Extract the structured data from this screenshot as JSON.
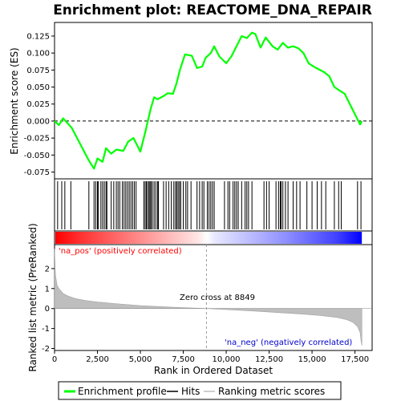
{
  "chart_data": {
    "type": "line",
    "title": "Enrichment plot: REACTOME_DNA_REPAIR",
    "xlabel": "Rank in Ordered Dataset",
    "ylabel_top": "Enrichment score (ES)",
    "ylabel_bottom": "Ranked list metric (PreRanked)",
    "xlim": [
      0,
      18500
    ],
    "x_ticks": [
      0,
      2500,
      5000,
      7500,
      10000,
      12500,
      15000,
      17500
    ],
    "x_tick_labels": [
      "0",
      "2,500",
      "5,000",
      "7,500",
      "10,000",
      "12,500",
      "15,000",
      "17,500"
    ],
    "es_ylim": [
      -0.085,
      0.145
    ],
    "es_ticks": [
      -0.075,
      -0.05,
      -0.025,
      0.0,
      0.025,
      0.05,
      0.075,
      0.1,
      0.125
    ],
    "es_tick_labels": [
      "-0.075",
      "-0.050",
      "-0.025",
      "0.000",
      "0.025",
      "0.050",
      "0.075",
      "0.100",
      "0.125"
    ],
    "metric_ylim": [
      -2.1,
      3.2
    ],
    "metric_ticks": [
      -2,
      -1,
      0,
      1,
      2
    ],
    "metric_tick_labels": [
      "-2",
      "-1",
      "0",
      "1",
      "2"
    ],
    "enrichment_profile": {
      "x": [
        0,
        250,
        500,
        1000,
        2000,
        2300,
        2500,
        2800,
        3000,
        3300,
        3600,
        4000,
        4300,
        4600,
        5000,
        5300,
        5600,
        5800,
        6000,
        6300,
        6600,
        6900,
        7100,
        7300,
        7600,
        8000,
        8300,
        8600,
        8800,
        9100,
        9300,
        9600,
        10000,
        10300,
        10600,
        10900,
        11200,
        11500,
        11700,
        12000,
        12300,
        12700,
        13000,
        13300,
        13600,
        13900,
        14200,
        14500,
        14800,
        15100,
        15400,
        15700,
        16000,
        16300,
        16600,
        16900,
        17200,
        17500,
        17800,
        17900
      ],
      "y": [
        0.0,
        -0.006,
        0.004,
        -0.01,
        -0.058,
        -0.07,
        -0.055,
        -0.06,
        -0.04,
        -0.048,
        -0.042,
        -0.044,
        -0.03,
        -0.025,
        -0.045,
        -0.015,
        0.018,
        0.035,
        0.032,
        0.036,
        0.041,
        0.04,
        0.055,
        0.075,
        0.098,
        0.096,
        0.078,
        0.08,
        0.093,
        0.1,
        0.11,
        0.095,
        0.085,
        0.095,
        0.11,
        0.125,
        0.122,
        0.13,
        0.128,
        0.108,
        0.123,
        0.11,
        0.105,
        0.115,
        0.108,
        0.11,
        0.107,
        0.1,
        0.085,
        0.08,
        0.076,
        0.072,
        0.066,
        0.05,
        0.045,
        0.04,
        0.025,
        0.01,
        -0.005,
        0.0
      ]
    },
    "hits": [
      180,
      420,
      600,
      950,
      2000,
      2300,
      2400,
      2500,
      2550,
      2700,
      2800,
      2900,
      3000,
      3050,
      3300,
      3450,
      3600,
      3700,
      3800,
      3950,
      4050,
      4150,
      4250,
      4350,
      4450,
      4550,
      4650,
      4750,
      5200,
      5280,
      5350,
      5420,
      5500,
      5560,
      5620,
      5700,
      5800,
      5900,
      6000,
      6050,
      6350,
      6500,
      6650,
      6800,
      6950,
      7050,
      7120,
      7200,
      7280,
      7350,
      7500,
      7650,
      7750,
      7950,
      8300,
      8450,
      8600,
      8700,
      8900,
      9000,
      9100,
      9200,
      9300,
      9900,
      10100,
      10200,
      10400,
      10500,
      10600,
      10700,
      10900,
      11100,
      11200,
      11300,
      11500,
      12200,
      12350,
      12500,
      12900,
      13050,
      13150,
      13200,
      13300,
      13450,
      13600,
      13900,
      14100,
      14300,
      14700,
      15000,
      15300,
      15550,
      15800,
      16300,
      16550,
      16700,
      17650,
      17850
    ],
    "metric": {
      "x": [
        0,
        50,
        150,
        300,
        500,
        800,
        1200,
        1800,
        2500,
        3500,
        5000,
        6500,
        8000,
        8849,
        10000,
        11500,
        13000,
        14500,
        15500,
        16500,
        17000,
        17400,
        17650,
        17800,
        17850,
        17900
      ],
      "y": [
        3.0,
        1.7,
        1.15,
        0.95,
        0.75,
        0.62,
        0.5,
        0.4,
        0.33,
        0.25,
        0.15,
        0.08,
        0.03,
        0.0,
        -0.05,
        -0.12,
        -0.2,
        -0.28,
        -0.35,
        -0.45,
        -0.55,
        -0.7,
        -0.9,
        -1.2,
        -1.6,
        -1.85
      ]
    },
    "zero_cross_label": "Zero cross at 8849",
    "zero_cross": 8849,
    "pos_label": "'na_pos' (positively correlated)",
    "neg_label": "'na_neg' (negatively correlated)",
    "legend": [
      "Enrichment profile",
      "Hits",
      "Ranking metric scores"
    ],
    "colors": {
      "profile": "#00ff00",
      "hits": "#000000",
      "metric_fill": "#bebebe",
      "pos_text": "#ff0000",
      "neg_text": "#0000cc",
      "bar_red": "#ff0000",
      "bar_blue": "#0000ff"
    }
  }
}
